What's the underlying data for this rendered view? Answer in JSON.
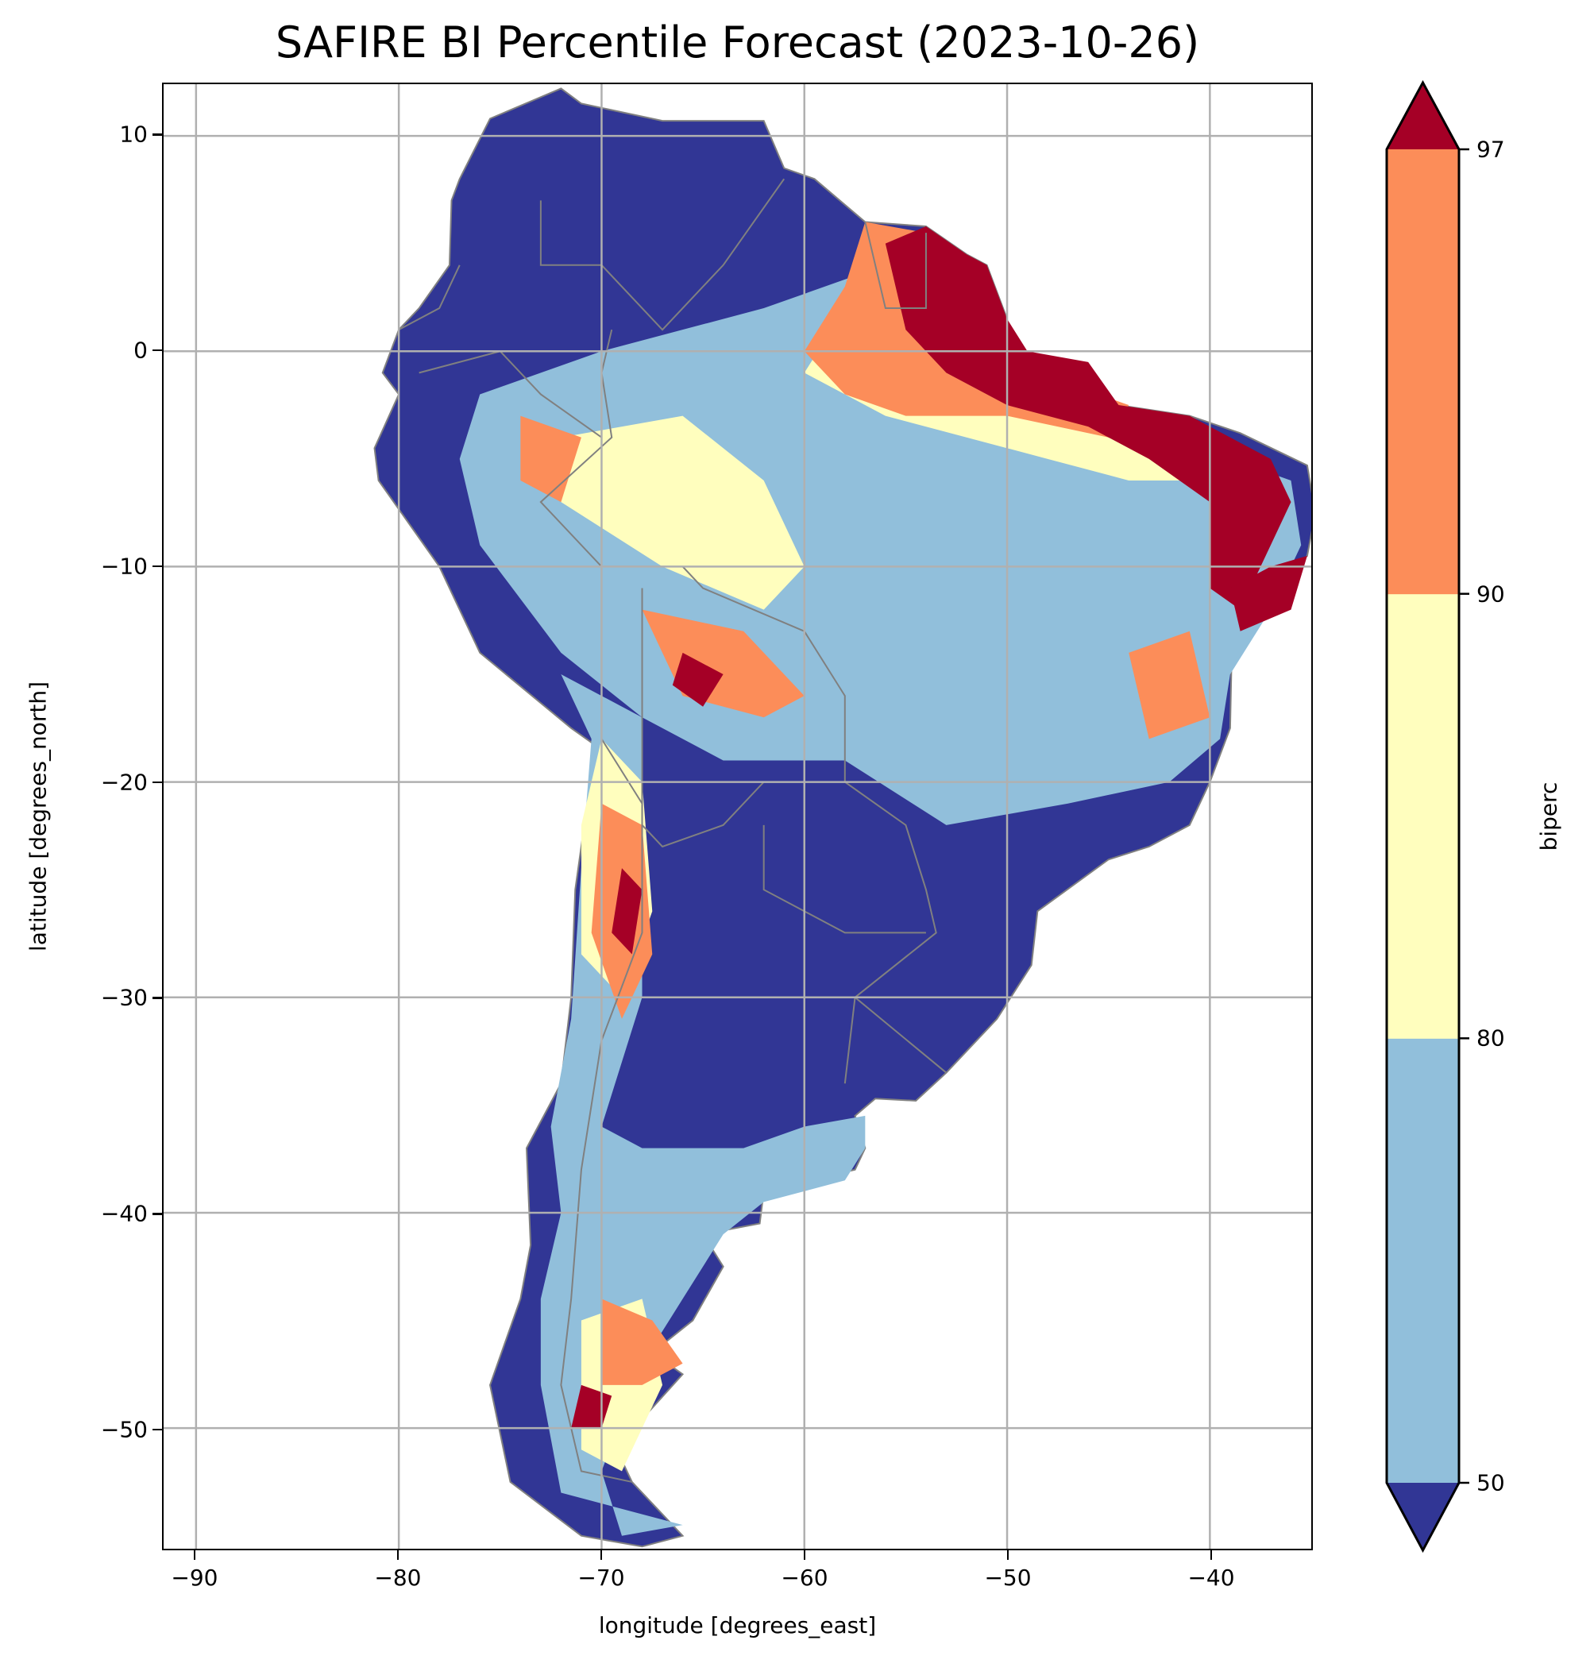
{
  "chart_data": {
    "type": "heatmap",
    "title": "SAFIRE BI Percentile Forecast (2023-10-26)",
    "xlabel": "longitude [degrees_east]",
    "ylabel": "latitude [degrees_north]",
    "xlim": [
      -91.6,
      -35.0
    ],
    "ylim": [
      -55.6,
      12.4
    ],
    "xticks": [
      -90,
      -80,
      -70,
      -60,
      -50,
      -40
    ],
    "xtick_labels": [
      "−90",
      "−80",
      "−70",
      "−60",
      "−50",
      "−40"
    ],
    "yticks": [
      10,
      0,
      -10,
      -20,
      -30,
      -40,
      -50
    ],
    "ytick_labels": [
      "10",
      "0",
      "−10",
      "−20",
      "−30",
      "−40",
      "−50"
    ],
    "grid": true,
    "colorbar": {
      "label": "biperc",
      "levels": [
        50,
        80,
        90,
        97
      ],
      "level_labels": [
        "50",
        "80",
        "90",
        "97"
      ],
      "extend": "both",
      "colors": [
        "#313695",
        "#91bfdb",
        "#fffebe",
        "#fc8d59",
        "#a50026"
      ],
      "placement": "right"
    },
    "region": "South America",
    "border_color": "#808080"
  }
}
